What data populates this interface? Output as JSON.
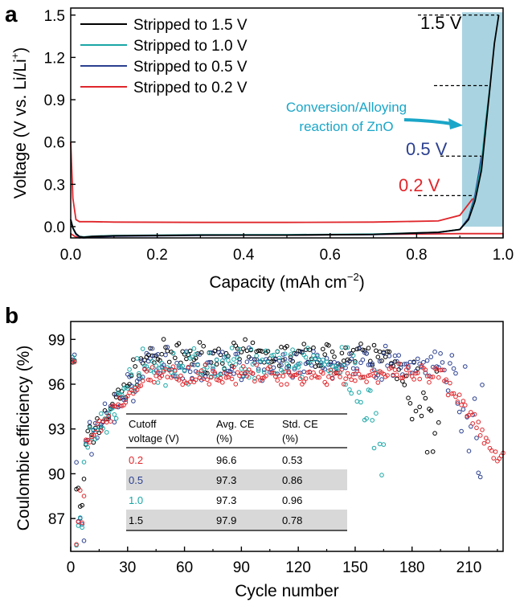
{
  "colors": {
    "black": "#000000",
    "teal": "#1aa6a6",
    "navy": "#2a3f8f",
    "red": "#e0262b",
    "highlight": "#a9d3e0",
    "arrow": "#1aa6c8",
    "table_shade": "#d8d8d8"
  },
  "chart_data": [
    {
      "panel_label": "a",
      "type": "line",
      "xlabel": "Capacity (mAh cm",
      "xlabel_sup": "−2",
      "xlabel_end": ")",
      "ylabel": "Voltage (V vs. Li/Li",
      "ylabel_sup": "+",
      "ylabel_end": ")",
      "xlim": [
        0.0,
        1.0
      ],
      "ylim": [
        -0.08,
        1.55
      ],
      "xticks": [
        "0.0",
        "0.2",
        "0.4",
        "0.6",
        "0.8",
        "1.0"
      ],
      "yticks": [
        "0.0",
        "0.3",
        "0.6",
        "0.9",
        "1.2",
        "1.5"
      ],
      "legend_position": "top-left",
      "series": [
        {
          "name": "Stripped to 1.5 V",
          "color": "black",
          "x": [
            0.0,
            0.005,
            0.012,
            0.02,
            0.03,
            0.05,
            0.1,
            0.3,
            0.5,
            0.7,
            0.85,
            0.9,
            0.92,
            0.935,
            0.95,
            0.96,
            0.97,
            0.98,
            0.99
          ],
          "y": [
            0.05,
            -0.01,
            -0.05,
            -0.07,
            -0.075,
            -0.07,
            -0.065,
            -0.06,
            -0.06,
            -0.055,
            -0.04,
            -0.02,
            0.05,
            0.18,
            0.4,
            0.7,
            1.0,
            1.3,
            1.5
          ]
        },
        {
          "name": "Stripped to 1.0 V",
          "color": "teal",
          "x": [
            0.0,
            0.005,
            0.012,
            0.02,
            0.03,
            0.05,
            0.1,
            0.3,
            0.5,
            0.7,
            0.85,
            0.9,
            0.92,
            0.935,
            0.95,
            0.96,
            0.97
          ],
          "y": [
            0.05,
            -0.01,
            -0.05,
            -0.07,
            -0.073,
            -0.068,
            -0.063,
            -0.058,
            -0.057,
            -0.053,
            -0.04,
            -0.02,
            0.05,
            0.2,
            0.45,
            0.75,
            1.0
          ]
        },
        {
          "name": "Stripped to 0.5 V",
          "color": "navy",
          "x": [
            0.0,
            0.005,
            0.012,
            0.02,
            0.03,
            0.05,
            0.1,
            0.3,
            0.5,
            0.7,
            0.85,
            0.9,
            0.92,
            0.935,
            0.945,
            0.95
          ],
          "y": [
            0.05,
            -0.01,
            -0.055,
            -0.075,
            -0.08,
            -0.075,
            -0.068,
            -0.062,
            -0.06,
            -0.056,
            -0.042,
            -0.02,
            0.06,
            0.22,
            0.4,
            0.5
          ]
        },
        {
          "name": "Stripped to 0.2 V",
          "color": "red",
          "x": [
            0.0,
            0.005,
            0.012,
            0.02,
            0.03,
            0.05,
            0.1,
            0.3,
            0.5,
            0.7,
            0.85,
            0.9,
            0.92,
            0.93
          ],
          "y": [
            0.6,
            0.2,
            0.05,
            0.035,
            0.035,
            0.035,
            0.032,
            0.03,
            0.03,
            0.032,
            0.04,
            0.08,
            0.16,
            0.2
          ]
        },
        {
          "name": "",
          "color": "red",
          "x": [
            0.0,
            0.01,
            0.02,
            0.03,
            0.05,
            0.1,
            0.3,
            0.5,
            0.7,
            0.9,
            1.0
          ],
          "y": [
            -0.05,
            -0.07,
            -0.08,
            -0.075,
            -0.07,
            -0.065,
            -0.06,
            -0.06,
            -0.055,
            -0.05,
            -0.05
          ]
        }
      ],
      "annotations": {
        "v15": {
          "text": "1.5 V",
          "color": "black",
          "y": 1.5
        },
        "v10": {
          "text": "",
          "color": "teal",
          "y": 1.0
        },
        "v05": {
          "text": "0.5 V",
          "color": "navy",
          "y": 0.5
        },
        "v02": {
          "text": "0.2 V",
          "color": "red",
          "y": 0.22
        },
        "conversion_line1": "Conversion/Alloying",
        "conversion_line2": "reaction of ZnO",
        "highlight_range": {
          "x": [
            0.905,
            1.0
          ],
          "y": [
            0.0,
            1.52
          ]
        }
      }
    },
    {
      "panel_label": "b",
      "type": "scatter",
      "xlabel": "Cycle number",
      "ylabel": "Coulombic efficiency (%)",
      "xlim": [
        0,
        228
      ],
      "ylim": [
        84.8,
        100.2
      ],
      "xticks": [
        "0",
        "30",
        "60",
        "90",
        "120",
        "150",
        "180",
        "210"
      ],
      "yticks": [
        "87",
        "90",
        "93",
        "96",
        "99"
      ],
      "series": [
        {
          "cutoff": "0.2",
          "color": "red",
          "max_cycle": 228,
          "mean": 96.6,
          "std": 0.53
        },
        {
          "cutoff": "0.5",
          "color": "navy",
          "max_cycle": 217,
          "mean": 97.3,
          "std": 0.86
        },
        {
          "cutoff": "1.0",
          "color": "teal",
          "max_cycle": 165,
          "mean": 97.3,
          "std": 0.96
        },
        {
          "cutoff": "1.5",
          "color": "black",
          "max_cycle": 194,
          "mean": 97.9,
          "std": 0.78
        }
      ],
      "table": {
        "headers": [
          [
            "Cutoff",
            "voltage (V)"
          ],
          [
            "Avg. CE",
            "(%)"
          ],
          [
            "Std. CE",
            "(%)"
          ]
        ],
        "rows": [
          {
            "cutoff": "0.2",
            "avg": "96.6",
            "std": "0.53",
            "color": "red",
            "shaded": false
          },
          {
            "cutoff": "0.5",
            "avg": "97.3",
            "std": "0.86",
            "color": "navy",
            "shaded": true
          },
          {
            "cutoff": "1.0",
            "avg": "97.3",
            "std": "0.96",
            "color": "teal",
            "shaded": false
          },
          {
            "cutoff": "1.5",
            "avg": "97.9",
            "std": "0.78",
            "color": "black",
            "shaded": true
          }
        ]
      }
    }
  ]
}
